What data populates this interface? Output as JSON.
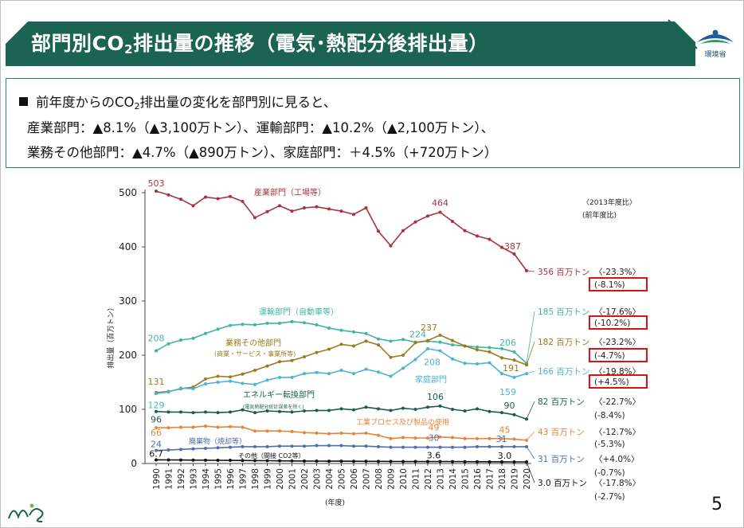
{
  "header": {
    "title_pre": "部門別CO",
    "title_sub": "2",
    "title_post": "排出量の推移（電気･熱配分後排出量）",
    "logo_text": "環境省",
    "accent_color": "#1b6453"
  },
  "summary": {
    "line1_pre": "前年度からのCO",
    "line1_sub": "2",
    "line1_post": "排出量の変化を部門別に見ると、",
    "line2": "産業部門：▲8.1%（▲3,100万トン）、運輸部門：▲10.2%（▲2,100万トン）、",
    "line3": "業務その他部門：▲4.7%（▲890万トン）、家庭部門：＋4.5%（+720万トン）"
  },
  "page_number": "5",
  "chart_data": {
    "type": "line",
    "ylabel": "排出量（百万トン）",
    "xlabel": "(年度)",
    "ylim": [
      0,
      500
    ],
    "yticks": [
      0,
      100,
      200,
      300,
      400,
      500
    ],
    "x": [
      1990,
      1991,
      1992,
      1993,
      1994,
      1995,
      1996,
      1997,
      1998,
      1999,
      2000,
      2001,
      2002,
      2003,
      2004,
      2005,
      2006,
      2007,
      2008,
      2009,
      2010,
      2011,
      2012,
      2013,
      2014,
      2015,
      2016,
      2017,
      2018,
      2019,
      2020
    ],
    "legend_note_1": "〈2013年度比〉",
    "legend_note_2": "(前年度比)",
    "series": [
      {
        "name": "産業部門（工場等）",
        "color": "#a8323c",
        "values": [
          503,
          496,
          488,
          476,
          492,
          489,
          493,
          484,
          454,
          465,
          476,
          466,
          472,
          474,
          470,
          466,
          460,
          472,
          429,
          402,
          430,
          446,
          457,
          464,
          447,
          430,
          420,
          414,
          399,
          387,
          356
        ],
        "point_labels": [
          {
            "x": 1990,
            "text": "503"
          },
          {
            "x": 2013,
            "text": "464"
          },
          {
            "x": 2019,
            "text": "387"
          }
        ],
        "end_label": "356 百万トン",
        "change_2013": "〈-23.3%〉",
        "change_prev": "(-8.1%)",
        "change_prev_boxed": true
      },
      {
        "name": "運輸部門（自動車等）",
        "color": "#3fb5a0",
        "values": [
          208,
          221,
          228,
          231,
          240,
          248,
          255,
          257,
          256,
          259,
          259,
          262,
          260,
          256,
          250,
          246,
          243,
          240,
          230,
          226,
          229,
          224,
          226,
          224,
          219,
          217,
          215,
          214,
          212,
          206,
          185
        ],
        "point_labels": [
          {
            "x": 1990,
            "text": "208"
          },
          {
            "x": 2013,
            "text": "224"
          },
          {
            "x": 2019,
            "text": "206"
          }
        ],
        "end_label": "185 百万トン",
        "change_2013": "〈-17.6%〉",
        "change_prev": "(-10.2%)",
        "change_prev_boxed": true
      },
      {
        "name": "業務その他部門",
        "name_note": "(商業・サービス・事業所等)",
        "color": "#9c7a1e",
        "values": [
          131,
          133,
          138,
          141,
          156,
          161,
          160,
          165,
          172,
          180,
          188,
          190,
          197,
          205,
          211,
          220,
          217,
          226,
          219,
          196,
          200,
          223,
          227,
          237,
          227,
          217,
          210,
          206,
          195,
          191,
          182
        ],
        "point_labels": [
          {
            "x": 1990,
            "text": "131"
          },
          {
            "x": 2013,
            "text": "237"
          },
          {
            "x": 2019,
            "text": "191"
          }
        ],
        "end_label": "182 百万トン",
        "change_2013": "〈-23.2%〉",
        "change_prev": "(-4.7%)",
        "change_prev_boxed": true
      },
      {
        "name": "家庭部門",
        "color": "#4ab3d6",
        "values": [
          129,
          132,
          139,
          138,
          147,
          150,
          152,
          148,
          146,
          154,
          159,
          159,
          166,
          168,
          166,
          172,
          166,
          174,
          169,
          161,
          176,
          192,
          212,
          208,
          193,
          185,
          184,
          186,
          166,
          159,
          166
        ],
        "point_labels": [
          {
            "x": 1990,
            "text": "129"
          },
          {
            "x": 2013,
            "text": "208"
          },
          {
            "x": 2019,
            "text": "159"
          }
        ],
        "end_label": "166 百万トン",
        "change_2013": "〈-19.8%〉",
        "change_prev": "(+4.5%)",
        "change_prev_boxed": true
      },
      {
        "name": "エネルギー転換部門",
        "name_note": "(電気熱配分統計誤差を除く)",
        "color": "#1b5e4f",
        "values": [
          96,
          95,
          95,
          94,
          95,
          94,
          95,
          99,
          94,
          97,
          96,
          95,
          97,
          98,
          98,
          101,
          99,
          104,
          101,
          98,
          102,
          100,
          104,
          106,
          100,
          97,
          101,
          96,
          94,
          90,
          82
        ],
        "point_labels": [
          {
            "x": 1990,
            "text": "96"
          },
          {
            "x": 2013,
            "text": "106"
          },
          {
            "x": 2019,
            "text": "90"
          }
        ],
        "end_label": "82 百万トン",
        "change_2013": "〈-22.7%〉",
        "change_prev": "(-8.4%)",
        "change_prev_boxed": false
      },
      {
        "name": "工業プロセス及び製品の使用",
        "color": "#e8843a",
        "values": [
          66,
          66,
          67,
          67,
          69,
          67,
          68,
          67,
          60,
          60,
          60,
          59,
          57,
          56,
          55,
          56,
          55,
          56,
          52,
          46,
          48,
          47,
          47,
          49,
          48,
          46,
          46,
          46,
          46,
          45,
          43
        ],
        "point_labels": [
          {
            "x": 1990,
            "text": "66"
          },
          {
            "x": 2013,
            "text": "49"
          },
          {
            "x": 2019,
            "text": "45"
          }
        ],
        "end_label": "43 百万トン",
        "change_2013": "〈-12.7%〉",
        "change_prev": "(-5.3%)",
        "change_prev_boxed": false
      },
      {
        "name": "廃棄物（焼却等）",
        "color": "#4f6eb0",
        "values": [
          24,
          25,
          26,
          27,
          28,
          29,
          30,
          31,
          31,
          31,
          32,
          32,
          32,
          33,
          33,
          33,
          32,
          32,
          31,
          30,
          30,
          30,
          30,
          30,
          30,
          30,
          31,
          31,
          31,
          31,
          31
        ],
        "point_labels": [
          {
            "x": 1990,
            "text": "24"
          },
          {
            "x": 2013,
            "text": "30"
          },
          {
            "x": 2019,
            "text": "31"
          }
        ],
        "end_label": "31 百万トン",
        "change_2013": "〈+4.0%〉",
        "change_prev": "(-0.7%)",
        "change_prev_boxed": false
      },
      {
        "name": "その他（間接 CO2等）",
        "color": "#111111",
        "values": [
          6.7,
          6.6,
          6.4,
          6.2,
          6.1,
          5.9,
          5.8,
          5.6,
          5.3,
          5.1,
          4.9,
          4.7,
          4.5,
          4.4,
          4.3,
          4.2,
          4.1,
          4.0,
          3.9,
          3.8,
          3.7,
          3.6,
          3.6,
          3.6,
          3.5,
          3.4,
          3.3,
          3.2,
          3.1,
          3.0,
          3.0
        ],
        "point_labels": [
          {
            "x": 1990,
            "text": "6.7"
          },
          {
            "x": 2013,
            "text": "3.6"
          },
          {
            "x": 2019,
            "text": "3.0"
          }
        ],
        "end_label": "3.0 百万トン",
        "change_2013": "〈-17.8%〉",
        "change_prev": "(-2.7%)",
        "change_prev_boxed": false
      }
    ]
  }
}
